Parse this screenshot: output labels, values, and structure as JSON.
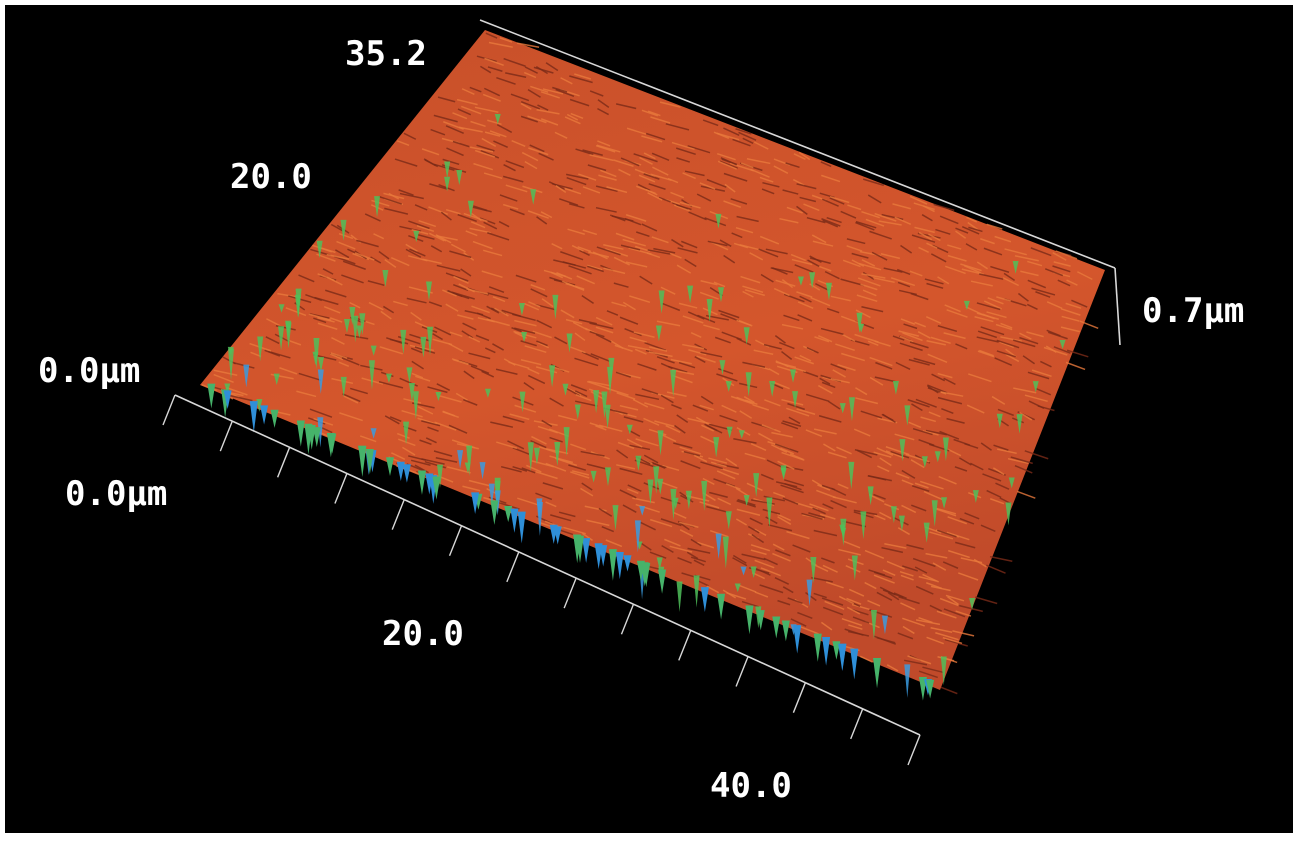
{
  "labels": {
    "y_top": "35.2",
    "y_mid": "20.0",
    "y_origin": "0.0μm",
    "z_height": "0.7μm",
    "x_origin": "0.0μm",
    "x_mid": "20.0",
    "x_end": "40.0"
  }
}
